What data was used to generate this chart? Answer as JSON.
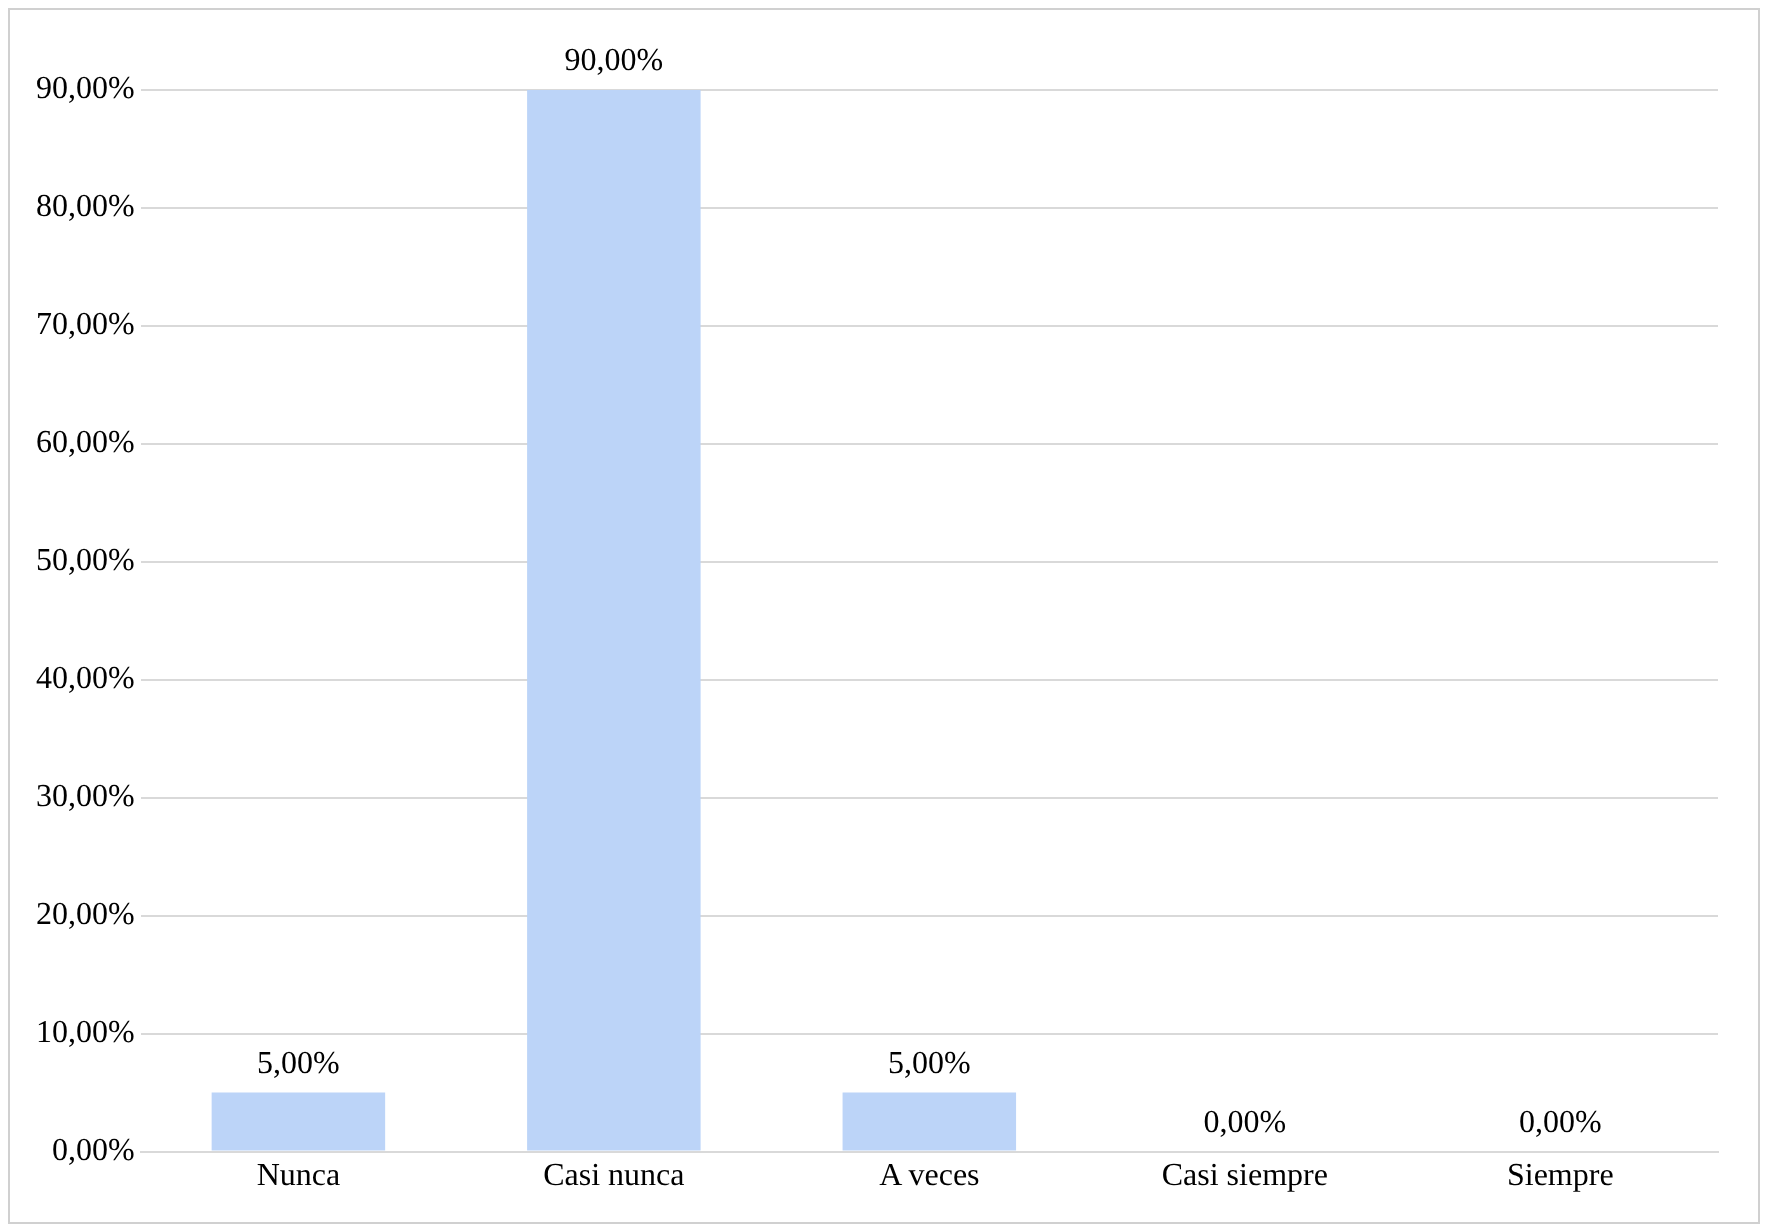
{
  "chart_data": {
    "type": "bar",
    "categories": [
      "Nunca",
      "Casi nunca",
      "A veces",
      "Casi siempre",
      "Siempre"
    ],
    "values": [
      5,
      90,
      5,
      0,
      0
    ],
    "value_labels": [
      "5,00%",
      "90,00%",
      "5,00%",
      "0,00%",
      "0,00%"
    ],
    "color": "#bcd4f8",
    "ylim": [
      0,
      90
    ],
    "yticks": [
      {
        "value": 0,
        "label": "0,00%"
      },
      {
        "value": 10,
        "label": "10,00%"
      },
      {
        "value": 20,
        "label": "20,00%"
      },
      {
        "value": 30,
        "label": "30,00%"
      },
      {
        "value": 40,
        "label": "40,00%"
      },
      {
        "value": 50,
        "label": "50,00%"
      },
      {
        "value": 60,
        "label": "60,00%"
      },
      {
        "value": 70,
        "label": "70,00%"
      },
      {
        "value": 80,
        "label": "80,00%"
      },
      {
        "value": 90,
        "label": "90,00%"
      }
    ],
    "grid": "y",
    "legend": false
  }
}
